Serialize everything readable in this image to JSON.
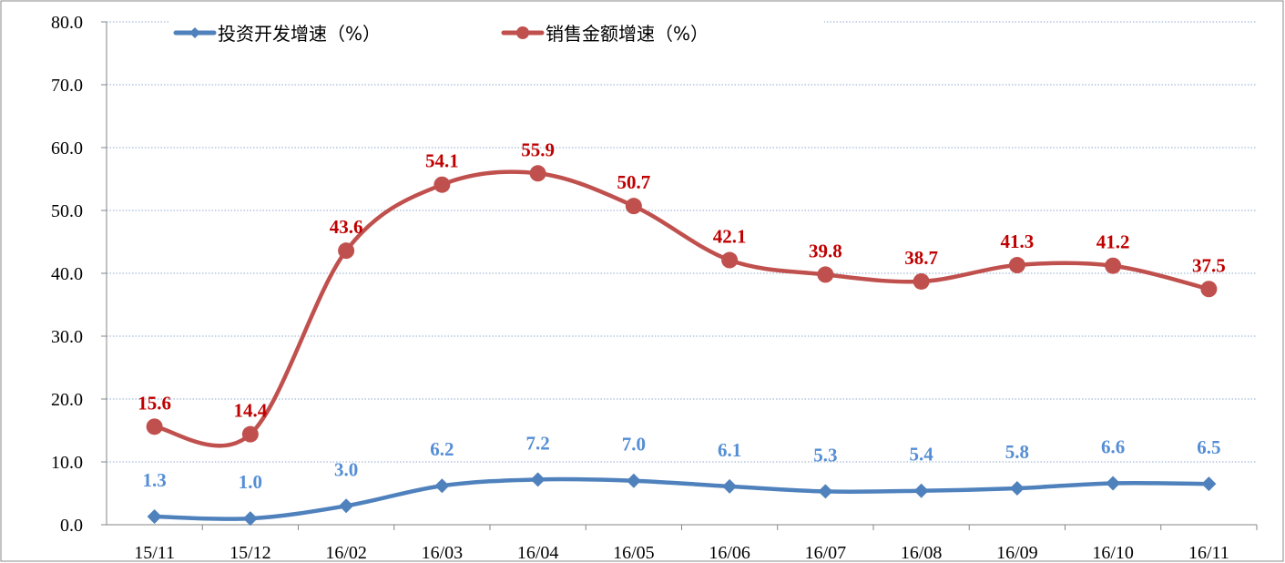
{
  "chart_data": {
    "type": "line",
    "title": "",
    "xlabel": "",
    "ylabel": "",
    "categories": [
      "15/11",
      "15/12",
      "16/02",
      "16/03",
      "16/04",
      "16/05",
      "16/06",
      "16/07",
      "16/08",
      "16/09",
      "16/10",
      "16/11"
    ],
    "ylim": [
      0,
      80
    ],
    "yticks": [
      "0.0",
      "10.0",
      "20.0",
      "30.0",
      "40.0",
      "50.0",
      "60.0",
      "70.0",
      "80.0"
    ],
    "grid": true,
    "legend_position": "top",
    "smooth": true,
    "series": [
      {
        "name": "投资开发增速（%）",
        "color": "#4F81BD",
        "label_color": "#558ED5",
        "marker": "diamond",
        "values": [
          1.3,
          1.0,
          3.0,
          6.2,
          7.2,
          7.0,
          6.1,
          5.3,
          5.4,
          5.8,
          6.6,
          6.5
        ],
        "labels": [
          "1.3",
          "1.0",
          "3.0",
          "6.2",
          "7.2",
          "7.0",
          "6.1",
          "5.3",
          "5.4",
          "5.8",
          "6.6",
          "6.5"
        ]
      },
      {
        "name": "销售金额增速（%）",
        "color": "#C0504D",
        "label_color": "#C00000",
        "marker": "circle",
        "values": [
          15.6,
          14.4,
          43.6,
          54.1,
          55.9,
          50.7,
          42.1,
          39.8,
          38.7,
          41.3,
          41.2,
          37.5
        ],
        "labels": [
          "15.6",
          "14.4",
          "43.6",
          "54.1",
          "55.9",
          "50.7",
          "42.1",
          "39.8",
          "38.7",
          "41.3",
          "41.2",
          "37.5"
        ]
      }
    ]
  }
}
